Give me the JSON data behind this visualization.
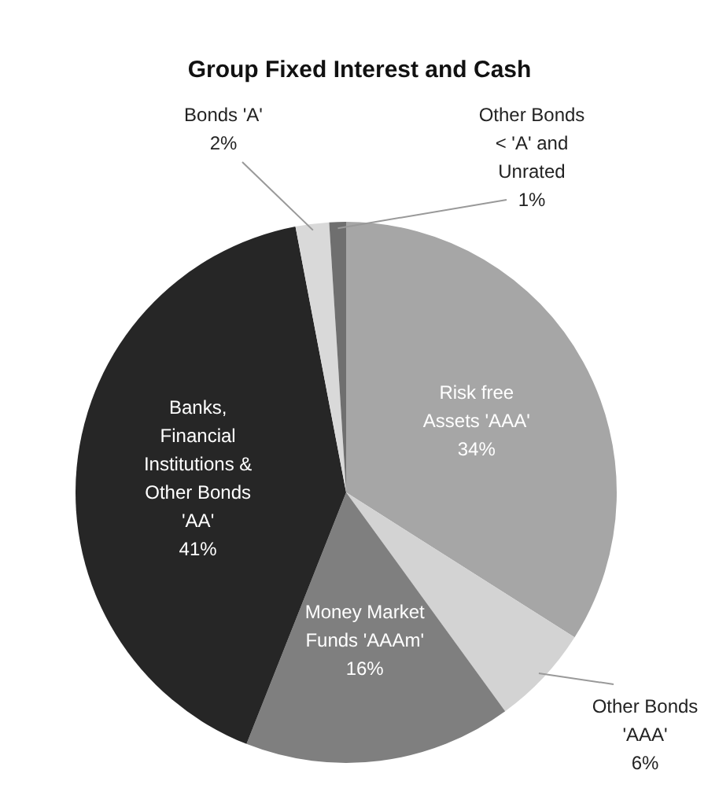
{
  "chart_data": {
    "type": "pie",
    "title": "Group Fixed Interest and Cash",
    "categories": [
      "Risk free Assets 'AAA'",
      "Other Bonds 'AAA'",
      "Money Market Funds 'AAAm'",
      "Banks, Financial Institutions & Other Bonds 'AA'",
      "Bonds 'A'",
      "Other Bonds < 'A' and Unrated"
    ],
    "values": [
      34,
      6,
      16,
      41,
      2,
      1
    ],
    "value_labels": [
      "34%",
      "6%",
      "16%",
      "41%",
      "2%",
      "1%"
    ],
    "colors": [
      "#a6a6a6",
      "#d3d3d3",
      "#7f7f7f",
      "#262626",
      "#d9d9d9",
      "#6f6f6f"
    ],
    "legend": false
  }
}
